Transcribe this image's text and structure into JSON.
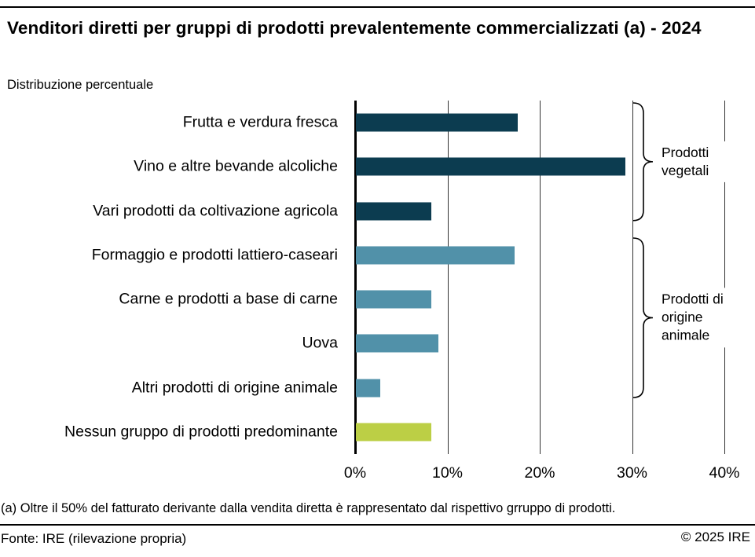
{
  "chart_data": {
    "type": "bar",
    "orientation": "horizontal",
    "title": "Venditori diretti per gruppi di prodotti prevalentemente commercializzati (a) - 2024",
    "subtitle": "Distribuzione percentuale",
    "categories": [
      "Frutta e verdura fresca",
      "Vino e altre bevande alcoliche",
      "Vari prodotti da coltivazione agricola",
      "Formaggio e prodotti lattiero-caseari",
      "Carne e prodotti a base di carne",
      "Uova",
      "Altri prodotti di origine animale",
      "Nessun gruppo di prodotti predominante"
    ],
    "values": [
      17.5,
      29.2,
      8.2,
      17.2,
      8.2,
      8.9,
      2.6,
      8.2
    ],
    "unit": "%",
    "colors": [
      "#0c3c50",
      "#0c3c50",
      "#0c3c50",
      "#5191a9",
      "#5191a9",
      "#5191a9",
      "#5191a9",
      "#bccf45"
    ],
    "xlim": [
      0,
      40
    ],
    "xticks": [
      "0%",
      "10%",
      "20%",
      "30%",
      "40%"
    ],
    "grid": true,
    "legend": false,
    "groups": [
      {
        "label": "Prodotti vegetali",
        "bars": [
          0,
          2
        ]
      },
      {
        "label": "Prodotti di origine animale",
        "bars": [
          3,
          6
        ]
      }
    ]
  },
  "footer": {
    "footnote": "(a) Oltre il 50% del fatturato derivante dalla vendita diretta è rappresentato dal rispettivo grruppo di prodotti.",
    "source": "Fonte: IRE (rilevazione propria)",
    "copyright": "© 2025 IRE"
  }
}
